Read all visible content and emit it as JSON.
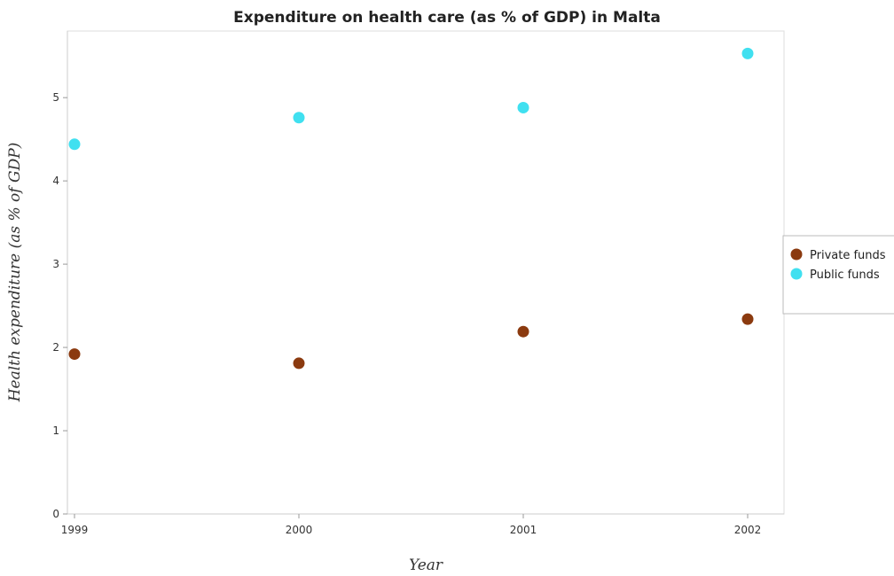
{
  "chart_data": {
    "type": "scatter",
    "title": "Expenditure on health care (as % of GDP) in Malta",
    "xlabel": "Year",
    "ylabel": "Health expenditure (as % of GDP)",
    "categories": [
      "1999",
      "2000",
      "2001",
      "2002"
    ],
    "ylim": [
      0,
      5.8
    ],
    "yticks": [
      0,
      1,
      2,
      3,
      4,
      5
    ],
    "ytick_labels": [
      "0",
      "1",
      "2",
      "3",
      "4",
      "5"
    ],
    "grid": false,
    "legend_position": "right",
    "series": [
      {
        "name": "Private funds",
        "color": "#8b3a0f",
        "values": [
          1.92,
          1.81,
          2.19,
          2.34
        ]
      },
      {
        "name": "Public funds",
        "color": "#40e0f0",
        "values": [
          4.44,
          4.76,
          4.88,
          5.53
        ]
      }
    ]
  }
}
